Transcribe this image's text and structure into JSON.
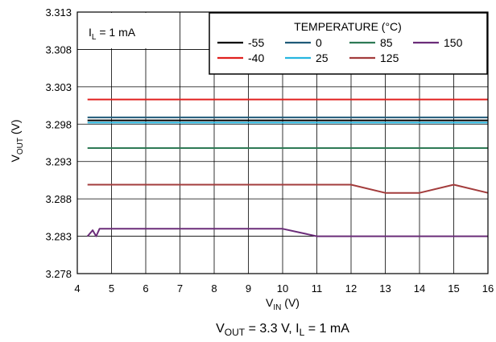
{
  "chart_data": {
    "type": "line",
    "xlabel": {
      "main": "V",
      "sub": "IN",
      "unit": " (V)"
    },
    "ylabel": {
      "main": "V",
      "sub": "OUT",
      "unit": " (V)"
    },
    "xlim": [
      4,
      16
    ],
    "ylim": [
      3.278,
      3.313
    ],
    "x_ticks": [
      4,
      5,
      6,
      7,
      8,
      9,
      10,
      11,
      12,
      13,
      14,
      15,
      16
    ],
    "y_ticks": [
      "3.278",
      "3.283",
      "3.288",
      "3.293",
      "3.298",
      "3.303",
      "3.308",
      "3.313"
    ],
    "grid": true,
    "annotation": {
      "main": "I",
      "sub": "L",
      "rest": " = 1 mA"
    },
    "legend": {
      "title": "TEMPERATURE (°C)",
      "placement": "top-right"
    },
    "caption": {
      "p1": "V",
      "p1_sub": "OUT",
      "p2": " = 3.3 V, I",
      "p2_sub": "L",
      "p3": " = 1 mA"
    },
    "series": [
      {
        "name": "-55",
        "color": "#000000",
        "x": [
          4.3,
          16
        ],
        "y": [
          3.2985,
          3.2985
        ]
      },
      {
        "name": "-40",
        "color": "#e0201f",
        "x": [
          4.3,
          16
        ],
        "y": [
          3.3013,
          3.3013
        ]
      },
      {
        "name": "0",
        "color": "#1f5a78",
        "x": [
          4.3,
          16
        ],
        "y": [
          3.2989,
          3.2989
        ]
      },
      {
        "name": "25",
        "color": "#27b6e0",
        "x": [
          4.3,
          16
        ],
        "y": [
          3.2982,
          3.2982
        ]
      },
      {
        "name": "85",
        "color": "#2e7a55",
        "x": [
          4.3,
          16
        ],
        "y": [
          3.2948,
          3.2948
        ]
      },
      {
        "name": "125",
        "color": "#a33c3c",
        "x": [
          4.3,
          12,
          13,
          14,
          15,
          16
        ],
        "y": [
          3.2899,
          3.2899,
          3.2888,
          3.2888,
          3.2899,
          3.2888
        ]
      },
      {
        "name": "150",
        "color": "#6b2d79",
        "x": [
          4.3,
          4.45,
          4.55,
          4.65,
          10,
          11,
          16
        ],
        "y": [
          3.283,
          3.2838,
          3.283,
          3.284,
          3.284,
          3.283,
          3.283
        ]
      }
    ]
  }
}
